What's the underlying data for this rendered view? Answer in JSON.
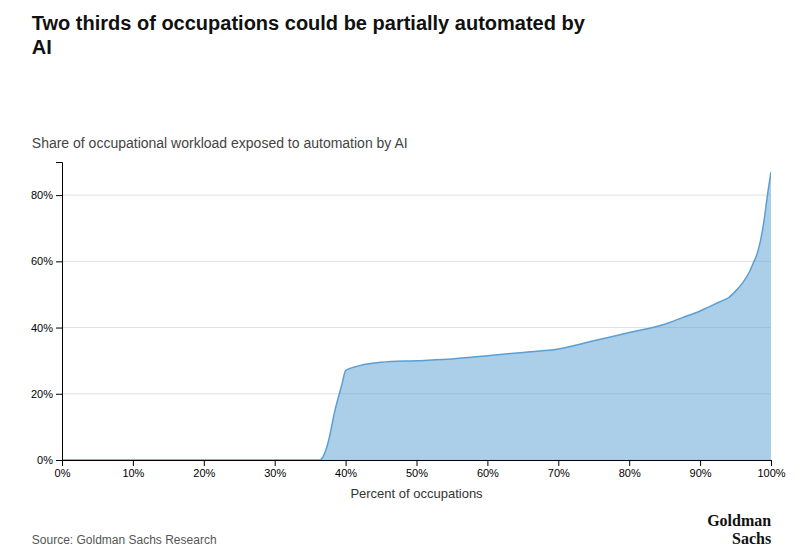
{
  "chart_data": {
    "type": "area",
    "title": "Two thirds of occupations could be partially automated by\nAI",
    "subtitle": "Share of occupational workload exposed to automation by AI",
    "xlabel": "Percent of occupations",
    "source": "Source: Goldman Sachs Research",
    "annotations": [
      "Goldman\nSachs"
    ],
    "color": "#5a9fd4",
    "grid": true,
    "xlim": [
      0,
      1
    ],
    "ylim": [
      0,
      0.9
    ],
    "xticks": [
      {
        "value": 0,
        "label": "0%"
      },
      {
        "value": 0.1,
        "label": "10%"
      },
      {
        "value": 0.2,
        "label": "20%"
      },
      {
        "value": 0.3,
        "label": "30%"
      },
      {
        "value": 0.4,
        "label": "40%"
      },
      {
        "value": 0.5,
        "label": "50%"
      },
      {
        "value": 0.6,
        "label": "60%"
      },
      {
        "value": 0.7,
        "label": "70%"
      },
      {
        "value": 0.8,
        "label": "80%"
      },
      {
        "value": 0.9,
        "label": "90%"
      },
      {
        "value": 1.0,
        "label": "100%"
      }
    ],
    "yticks": [
      {
        "value": 0,
        "label": "0%"
      },
      {
        "value": 0.2,
        "label": "20%"
      },
      {
        "value": 0.4,
        "label": "40%"
      },
      {
        "value": 0.6,
        "label": "60%"
      },
      {
        "value": 0.8,
        "label": "80%"
      }
    ],
    "x": [
      0.0,
      0.364,
      0.365,
      0.375,
      0.385,
      0.395,
      0.4,
      0.42,
      0.45,
      0.5,
      0.55,
      0.6,
      0.65,
      0.7,
      0.75,
      0.8,
      0.85,
      0.875,
      0.9,
      0.91,
      0.92,
      0.93,
      0.94,
      0.95,
      0.96,
      0.97,
      0.975,
      0.98,
      0.985,
      0.99,
      0.995,
      1.0
    ],
    "values": [
      0.0,
      0.0,
      0.001,
      0.05,
      0.15,
      0.23,
      0.27,
      0.285,
      0.295,
      0.3,
      0.305,
      0.315,
      0.325,
      0.335,
      0.36,
      0.385,
      0.41,
      0.43,
      0.45,
      0.46,
      0.47,
      0.48,
      0.49,
      0.51,
      0.535,
      0.57,
      0.595,
      0.62,
      0.66,
      0.72,
      0.8,
      0.87
    ]
  }
}
